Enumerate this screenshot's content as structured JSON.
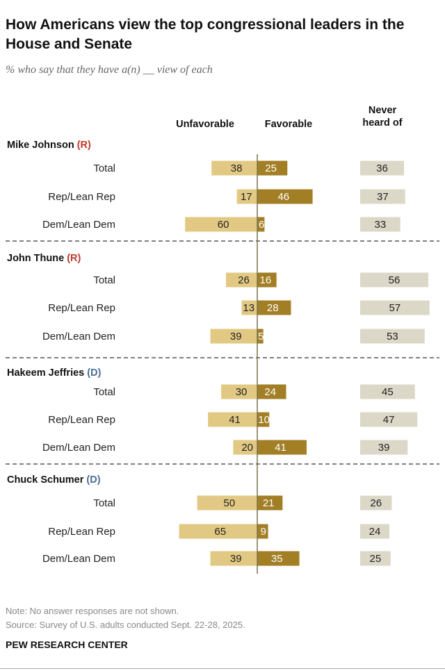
{
  "title": "How Americans view the top congressional leaders in the House and Senate",
  "subtitle": "% who say that they have a(n) __ view of each",
  "note": "Note: No answer responses are not shown.",
  "source": "Source: Survey of U.S. adults conducted Sept. 22-28, 2025.",
  "brand": "PEW RESEARCH CENTER",
  "chart_data": {
    "type": "bar",
    "columns": {
      "unfavorable": "Unfavorable",
      "favorable": "Favorable",
      "never": "Never heard of"
    },
    "colors": {
      "unfavorable": "#e2c983",
      "favorable": "#a27e25",
      "never": "#dcd8c8",
      "R": "#c0392b",
      "D": "#4b6e96"
    },
    "groups": [
      {
        "name": "Mike Johnson",
        "party": "(R)",
        "party_key": "R",
        "rows": [
          {
            "label": "Total",
            "unfavorable": 38,
            "favorable": 25,
            "never": 36
          },
          {
            "label": "Rep/Lean Rep",
            "unfavorable": 17,
            "favorable": 46,
            "never": 37
          },
          {
            "label": "Dem/Lean Dem",
            "unfavorable": 60,
            "favorable": 6,
            "never": 33
          }
        ]
      },
      {
        "name": "John Thune",
        "party": "(R)",
        "party_key": "R",
        "rows": [
          {
            "label": "Total",
            "unfavorable": 26,
            "favorable": 16,
            "never": 56
          },
          {
            "label": "Rep/Lean Rep",
            "unfavorable": 13,
            "favorable": 28,
            "never": 57
          },
          {
            "label": "Dem/Lean Dem",
            "unfavorable": 39,
            "favorable": 5,
            "never": 53
          }
        ]
      },
      {
        "name": "Hakeem Jeffries",
        "party": "(D)",
        "party_key": "D",
        "rows": [
          {
            "label": "Total",
            "unfavorable": 30,
            "favorable": 24,
            "never": 45
          },
          {
            "label": "Rep/Lean Rep",
            "unfavorable": 41,
            "favorable": 10,
            "never": 47
          },
          {
            "label": "Dem/Lean Dem",
            "unfavorable": 20,
            "favorable": 41,
            "never": 39
          }
        ]
      },
      {
        "name": "Chuck Schumer",
        "party": "(D)",
        "party_key": "D",
        "rows": [
          {
            "label": "Total",
            "unfavorable": 50,
            "favorable": 21,
            "never": 26
          },
          {
            "label": "Rep/Lean Rep",
            "unfavorable": 65,
            "favorable": 9,
            "never": 24
          },
          {
            "label": "Dem/Lean Dem",
            "unfavorable": 39,
            "favorable": 35,
            "never": 25
          }
        ]
      }
    ]
  }
}
